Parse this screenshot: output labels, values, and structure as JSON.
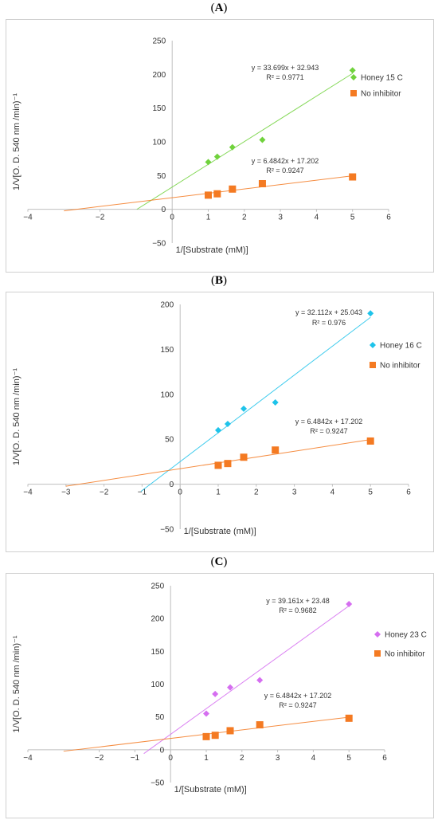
{
  "chart_data": [
    {
      "panel_label": "A",
      "type": "scatter",
      "ylabel": "1/V[O. D. 540 nm /min)⁻¹",
      "xlabel": "1/[Substrate (mM)]",
      "xlim": [
        -4,
        6
      ],
      "ylim": [
        -50,
        250
      ],
      "xticks": [
        "−4",
        "−2",
        "0",
        "1",
        "2",
        "3",
        "4",
        "5",
        "6"
      ],
      "yticks": [
        "−50",
        "0",
        "50",
        "100",
        "150",
        "200",
        "250"
      ],
      "grid": false,
      "legend_position": "right",
      "series": [
        {
          "name": "Honey 15 C",
          "color": "#70d23c",
          "marker": "diamond",
          "x": [
            1,
            1.25,
            1.67,
            2.5,
            5
          ],
          "y": [
            70,
            78,
            92,
            103,
            206
          ],
          "trendline": {
            "slope": 33.699,
            "intercept": 32.943,
            "x_from": -0.98,
            "x_to": 5
          },
          "equation": "y = 33.699x + 32.943",
          "r2": "R² = 0.9771"
        },
        {
          "name": "No inhibitor",
          "color": "#f47a22",
          "marker": "square",
          "x": [
            1,
            1.25,
            1.67,
            2.5,
            5
          ],
          "y": [
            21,
            23,
            30,
            38,
            48
          ],
          "trendline": {
            "slope": 6.4842,
            "intercept": 17.202,
            "x_from": -3,
            "x_to": 5
          },
          "equation": "y = 6.4842x + 17.202",
          "r2": "R² = 0.9247"
        }
      ]
    },
    {
      "panel_label": "B",
      "type": "scatter",
      "ylabel": "1/V[O. D. 540 nm /min)⁻¹",
      "xlabel": "1/[Substrate (mM)]",
      "xlim": [
        -4,
        6
      ],
      "ylim": [
        -50,
        200
      ],
      "xticks": [
        "−4",
        "−3",
        "−2",
        "−1",
        "0",
        "1",
        "2",
        "3",
        "4",
        "5",
        "6"
      ],
      "yticks": [
        "−50",
        "0",
        "50",
        "100",
        "150",
        "200"
      ],
      "grid": false,
      "legend_position": "right",
      "series": [
        {
          "name": "Honey 16 C",
          "color": "#1ec3ea",
          "marker": "diamond",
          "x": [
            1,
            1.25,
            1.67,
            2.5,
            5
          ],
          "y": [
            60,
            67,
            84,
            91,
            190
          ],
          "trendline": {
            "slope": 32.112,
            "intercept": 25.043,
            "x_from": -1.03,
            "x_to": 5
          },
          "equation": "y = 32.112x + 25.043",
          "r2": "R² = 0.976"
        },
        {
          "name": "No inhibitor",
          "color": "#f47a22",
          "marker": "square",
          "x": [
            1,
            1.25,
            1.67,
            2.5,
            5
          ],
          "y": [
            21,
            23,
            30,
            38,
            48
          ],
          "trendline": {
            "slope": 6.4842,
            "intercept": 17.202,
            "x_from": -3,
            "x_to": 5
          },
          "equation": "y = 6.4842x + 17.202",
          "r2": "R² = 0.9247"
        }
      ]
    },
    {
      "panel_label": "C",
      "type": "scatter",
      "ylabel": "1/V[O. D. 540 nm /min)⁻¹",
      "xlabel": "1/[Substrate (mM)]",
      "xlim": [
        -4,
        6
      ],
      "ylim": [
        -50,
        250
      ],
      "xticks": [
        "−4",
        "−2",
        "−1",
        "0",
        "1",
        "2",
        "3",
        "4",
        "5",
        "6"
      ],
      "yticks": [
        "−50",
        "0",
        "50",
        "100",
        "150",
        "200",
        "250"
      ],
      "grid": false,
      "legend_position": "right",
      "series": [
        {
          "name": "Honey 23 C",
          "color": "#d56ef0",
          "marker": "diamond",
          "x": [
            1,
            1.25,
            1.67,
            2.5,
            5
          ],
          "y": [
            55,
            85,
            95,
            106,
            222
          ],
          "trendline": {
            "slope": 39.161,
            "intercept": 23.48,
            "x_from": -0.75,
            "x_to": 5
          },
          "equation": "y = 39.161x + 23.48",
          "r2": "R² = 0.9682"
        },
        {
          "name": "No inhibitor",
          "color": "#f47a22",
          "marker": "square",
          "x": [
            1,
            1.25,
            1.67,
            2.5,
            5
          ],
          "y": [
            20,
            22,
            29,
            38,
            48
          ],
          "trendline": {
            "slope": 6.4842,
            "intercept": 17.202,
            "x_from": -3,
            "x_to": 5
          },
          "equation": "y = 6.4842x + 17.202",
          "r2": "R² = 0.9247"
        }
      ]
    }
  ]
}
